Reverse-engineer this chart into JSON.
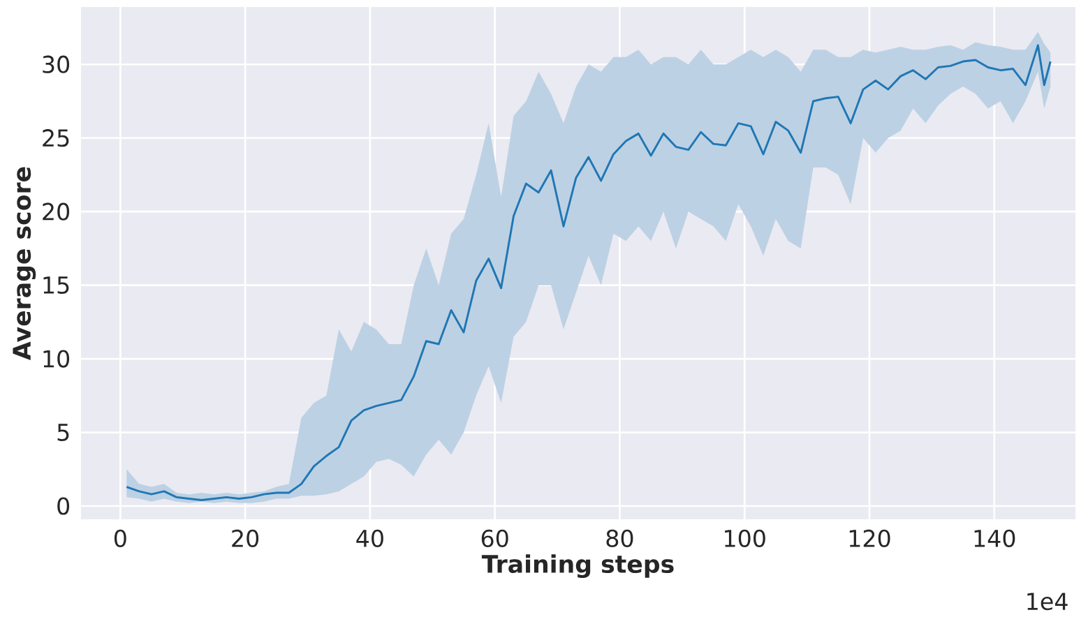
{
  "chart_data": {
    "type": "line",
    "xlabel": "Training steps",
    "ylabel": "Average score",
    "annotations": [
      "1e4"
    ],
    "xlim": [
      -6.3,
      153
    ],
    "ylim": [
      -0.9,
      33.9
    ],
    "xticks": [
      0,
      20,
      40,
      60,
      80,
      100,
      120,
      140
    ],
    "yticks": [
      0,
      5,
      10,
      15,
      20,
      25,
      30
    ],
    "grid": true,
    "series": [
      {
        "color": "#1f77b4",
        "x": [
          1,
          3,
          5,
          7,
          9,
          11,
          13,
          15,
          17,
          19,
          21,
          23,
          25,
          27,
          29,
          31,
          33,
          35,
          37,
          39,
          41,
          43,
          45,
          47,
          49,
          51,
          53,
          55,
          57,
          59,
          61,
          63,
          65,
          67,
          69,
          71,
          73,
          75,
          77,
          79,
          81,
          83,
          85,
          87,
          89,
          91,
          93,
          95,
          97,
          99,
          101,
          103,
          105,
          107,
          109,
          111,
          113,
          115,
          117,
          119,
          121,
          123,
          125,
          127,
          129,
          131,
          133,
          135,
          137,
          139,
          141,
          143,
          145,
          147,
          148,
          149
        ],
        "values": [
          1.3,
          1.0,
          0.8,
          1.0,
          0.6,
          0.5,
          0.4,
          0.5,
          0.6,
          0.5,
          0.6,
          0.8,
          0.9,
          0.9,
          1.5,
          2.7,
          3.4,
          4.0,
          5.8,
          6.5,
          6.8,
          7.0,
          7.2,
          8.8,
          11.2,
          11.0,
          13.3,
          11.8,
          15.3,
          16.8,
          14.8,
          19.7,
          21.9,
          21.3,
          22.8,
          19.0,
          22.3,
          23.7,
          22.1,
          23.9,
          24.8,
          25.3,
          23.8,
          25.3,
          24.4,
          24.2,
          25.4,
          24.6,
          24.5,
          26.0,
          25.8,
          23.9,
          26.1,
          25.5,
          24.0,
          27.5,
          27.7,
          27.8,
          26.0,
          28.3,
          28.9,
          28.3,
          29.2,
          29.6,
          29.0,
          29.8,
          29.9,
          30.2,
          30.3,
          29.8,
          29.6,
          29.7,
          28.6,
          31.3,
          28.6,
          30.2
        ],
        "lower": [
          0.6,
          0.5,
          0.3,
          0.5,
          0.3,
          0.2,
          0.3,
          0.2,
          0.3,
          0.2,
          0.2,
          0.3,
          0.5,
          0.5,
          0.7,
          0.7,
          0.8,
          1.0,
          1.5,
          2.0,
          3.0,
          3.2,
          2.8,
          2.0,
          3.5,
          4.5,
          3.5,
          5.0,
          7.5,
          9.5,
          7.0,
          11.5,
          12.5,
          15.0,
          15.0,
          12.0,
          14.5,
          17.0,
          15.0,
          18.5,
          18.0,
          19.0,
          18.0,
          20.0,
          17.5,
          20.0,
          19.5,
          19.0,
          18.0,
          20.5,
          19.0,
          17.0,
          19.5,
          18.0,
          17.5,
          23.0,
          23.0,
          22.5,
          20.5,
          25.0,
          24.0,
          25.0,
          25.5,
          27.0,
          26.0,
          27.2,
          28.0,
          28.5,
          28.0,
          27.0,
          27.5,
          26.0,
          27.5,
          29.5,
          27.0,
          28.5
        ],
        "upper": [
          2.5,
          1.5,
          1.3,
          1.5,
          0.9,
          0.8,
          0.9,
          0.8,
          0.9,
          0.8,
          0.9,
          1.0,
          1.3,
          1.5,
          6.0,
          7.0,
          7.5,
          12.0,
          10.5,
          12.5,
          12.0,
          11.0,
          11.0,
          15.0,
          17.5,
          15.0,
          18.5,
          19.5,
          22.5,
          26.0,
          21.0,
          26.5,
          27.5,
          29.5,
          28.0,
          26.0,
          28.5,
          30.0,
          29.5,
          30.5,
          30.5,
          31.0,
          30.0,
          30.5,
          30.5,
          30.0,
          31.0,
          30.0,
          30.0,
          30.5,
          31.0,
          30.5,
          31.0,
          30.5,
          29.5,
          31.0,
          31.0,
          30.5,
          30.5,
          31.0,
          30.8,
          31.0,
          31.2,
          31.0,
          31.0,
          31.2,
          31.3,
          31.0,
          31.5,
          31.3,
          31.2,
          31.0,
          31.0,
          32.2,
          31.4,
          30.8
        ]
      }
    ]
  }
}
